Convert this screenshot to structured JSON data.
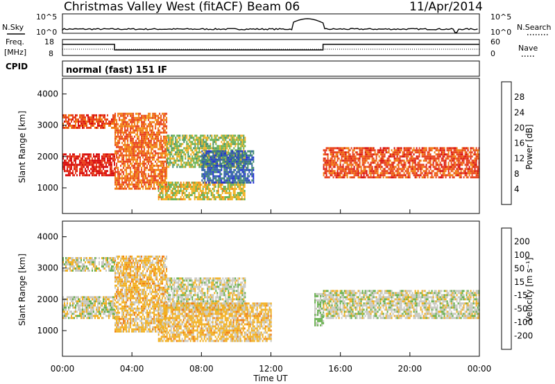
{
  "header": {
    "station": "Christmas Valley West (fitACF)",
    "beam": "Beam 06",
    "date": "11/Apr/2014"
  },
  "noise_panel": {
    "left_label": "N.Sky",
    "left_ticks": [
      "10^5",
      "10^0"
    ],
    "right_label": "N.Search",
    "right_ticks": [
      "10^5",
      "10^0"
    ]
  },
  "freq_panel": {
    "left_label_1": "Freq.",
    "left_label_2": "[MHz]",
    "left_ticks": [
      "18",
      "8"
    ],
    "right_label": "Nave",
    "right_ticks": [
      "60",
      "0"
    ]
  },
  "cpid": {
    "label": "CPID",
    "value": "normal (fast) 151 IF"
  },
  "colors": {
    "power_scale": [
      "#1e2bd6",
      "#2e5ea8",
      "#3f8a6a",
      "#67b04e",
      "#f2b020",
      "#f07a10",
      "#e8401a",
      "#d80e0e"
    ],
    "velocity_scale": [
      "#e81414",
      "#f07a10",
      "#f2b020",
      "#c8c8c0",
      "#67b04e",
      "#3f8a6a",
      "#2e5ea8"
    ]
  },
  "chart_data": [
    {
      "type": "heatmap",
      "panel": "power",
      "ylabel": "Slant Range [km]",
      "xlabel": "",
      "x_ticks": [],
      "y_ticks": [
        "1000",
        "2000",
        "3000",
        "4000"
      ],
      "ylim": [
        180,
        4500
      ],
      "colorbar": {
        "label": "Power [dB]",
        "ticks": [
          "4",
          "8",
          "12",
          "16",
          "20",
          "24",
          "28"
        ],
        "range": [
          0,
          30
        ]
      },
      "echo_bands": [
        {
          "t_start": 0.0,
          "t_end": 3.0,
          "r_low": 1400,
          "r_high": 2100,
          "value": 27
        },
        {
          "t_start": 0.0,
          "t_end": 3.0,
          "r_low": 2900,
          "r_high": 3350,
          "value": 24
        },
        {
          "t_start": 3.0,
          "t_end": 6.0,
          "r_low": 1000,
          "r_high": 3400,
          "value": 22
        },
        {
          "t_start": 5.5,
          "t_end": 10.5,
          "r_low": 650,
          "r_high": 1200,
          "value": 16
        },
        {
          "t_start": 6.0,
          "t_end": 10.5,
          "r_low": 1700,
          "r_high": 2700,
          "value": 14
        },
        {
          "t_start": 8.0,
          "t_end": 11.0,
          "r_low": 1200,
          "r_high": 2200,
          "value": 6
        },
        {
          "t_start": 15.0,
          "t_end": 24.0,
          "r_low": 1350,
          "r_high": 2300,
          "value": 24
        }
      ]
    },
    {
      "type": "heatmap",
      "panel": "velocity",
      "ylabel": "Slant Range [km]",
      "xlabel": "Time UT",
      "x_ticks": [
        "00:00",
        "04:00",
        "08:00",
        "12:00",
        "16:00",
        "20:00",
        "00:00"
      ],
      "y_ticks": [
        "1000",
        "2000",
        "3000",
        "4000"
      ],
      "ylim": [
        180,
        4500
      ],
      "colorbar": {
        "label": "Velocity [m s⁻¹]",
        "ticks": [
          "200",
          "100",
          "50",
          "15",
          "-15",
          "-50",
          "-100",
          "-200"
        ],
        "range": [
          -250,
          250
        ]
      },
      "echo_bands": [
        {
          "t_start": 0.0,
          "t_end": 3.0,
          "r_low": 1400,
          "r_high": 2100,
          "value": 0
        },
        {
          "t_start": 0.0,
          "t_end": 3.0,
          "r_low": 2900,
          "r_high": 3350,
          "value": 0
        },
        {
          "t_start": 3.0,
          "t_end": 6.0,
          "r_low": 1000,
          "r_high": 3400,
          "value": -60
        },
        {
          "t_start": 6.0,
          "t_end": 10.5,
          "r_low": 1700,
          "r_high": 2700,
          "value": 0
        },
        {
          "t_start": 5.5,
          "t_end": 12.0,
          "r_low": 650,
          "r_high": 1900,
          "value": -60
        },
        {
          "t_start": 14.5,
          "t_end": 15.0,
          "r_low": 1200,
          "r_high": 2200,
          "value": 30
        },
        {
          "t_start": 15.0,
          "t_end": 24.0,
          "r_low": 1400,
          "r_high": 2300,
          "value": 0
        }
      ]
    }
  ]
}
